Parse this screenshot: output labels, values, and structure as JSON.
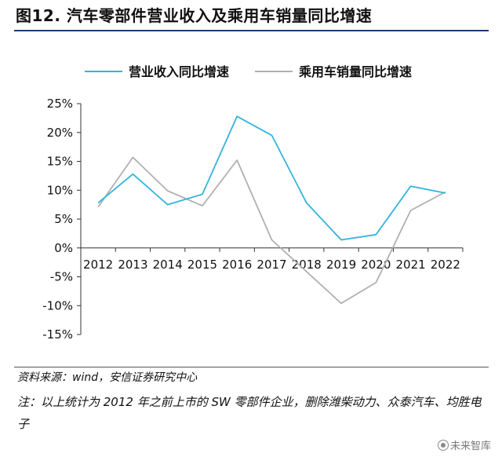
{
  "figure": {
    "title": "图12. 汽车零部件营业收入及乘用车销量同比增速",
    "source": "资料来源：wind，安信证券研究中心",
    "note": "注：以上统计为 2012 年之前上市的 SW 零部件企业，删除潍柴动力、众泰汽车、均胜电子",
    "watermark": "未来智库"
  },
  "chart_data": {
    "type": "line",
    "title": "",
    "xlabel": "",
    "ylabel": "",
    "x": [
      "2012",
      "2013",
      "2014",
      "2015",
      "2016",
      "2017",
      "2018",
      "2019",
      "2020",
      "2021",
      "2022"
    ],
    "y_ticks": [
      "25%",
      "20%",
      "15%",
      "10%",
      "5%",
      "0%",
      "-5%",
      "-10%",
      "-15%"
    ],
    "ylim": [
      -15,
      25
    ],
    "legend_position": "top",
    "grid": false,
    "series": [
      {
        "name": "营业收入同比增速",
        "color": "#35b3dc",
        "values": [
          7.8,
          12.8,
          7.5,
          9.3,
          22.8,
          19.5,
          7.8,
          1.4,
          2.3,
          10.7,
          9.5
        ]
      },
      {
        "name": "乘用车销量同比增速",
        "color": "#b0b0b0",
        "values": [
          7.1,
          15.7,
          9.9,
          7.3,
          15.2,
          1.4,
          -4.1,
          -9.6,
          -6.0,
          6.5,
          9.7
        ]
      }
    ]
  }
}
